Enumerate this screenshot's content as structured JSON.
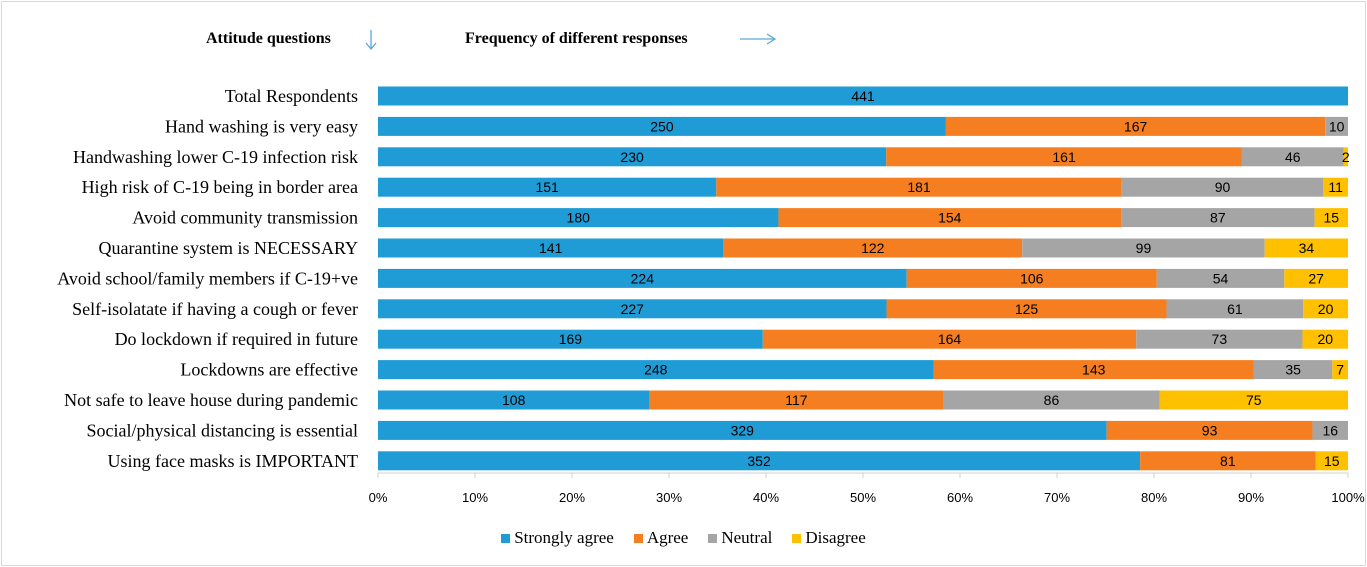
{
  "headers": {
    "attitude": "Attitude questions",
    "frequency": "Frequency of different responses"
  },
  "icons": {
    "down_arrow": "arrow-down-icon",
    "right_arrow": "arrow-right-icon",
    "arrow_color": "#5aa9d6"
  },
  "chart_data": {
    "type": "bar",
    "orientation": "horizontal",
    "stacked": "percent",
    "categories": [
      "Total Respondents",
      "Hand washing is very easy",
      "Handwashing lower C-19 infection risk",
      "High risk of C-19 being in border area",
      "Avoid community transmission",
      "Quarantine system is NECESSARY",
      "Avoid school/family members if C-19+ve",
      "Self-isolatate if having a cough or fever",
      "Do lockdown if required in future",
      "Lockdowns are effective",
      "Not safe to leave house during pandemic",
      "Social/physical distancing is essential",
      "Using face masks is IMPORTANT"
    ],
    "series": [
      {
        "name": "Strongly agree",
        "color": "#1f9cd6",
        "values": [
          441,
          250,
          230,
          151,
          180,
          141,
          224,
          227,
          169,
          248,
          108,
          329,
          352
        ]
      },
      {
        "name": "Agree",
        "color": "#f57f20",
        "values": [
          0,
          167,
          161,
          181,
          154,
          122,
          106,
          125,
          164,
          143,
          117,
          93,
          81
        ]
      },
      {
        "name": "Neutral",
        "color": "#a5a5a5",
        "values": [
          0,
          10,
          46,
          90,
          87,
          99,
          54,
          61,
          73,
          35,
          86,
          16,
          0
        ]
      },
      {
        "name": "Disagree",
        "color": "#ffc000",
        "values": [
          0,
          0,
          2,
          11,
          15,
          34,
          27,
          20,
          20,
          7,
          75,
          0,
          15
        ]
      }
    ],
    "x_ticks": [
      "0%",
      "10%",
      "20%",
      "30%",
      "40%",
      "50%",
      "60%",
      "70%",
      "80%",
      "90%",
      "100%"
    ],
    "xlim": [
      0,
      100
    ],
    "grid": false,
    "legend_position": "bottom"
  }
}
